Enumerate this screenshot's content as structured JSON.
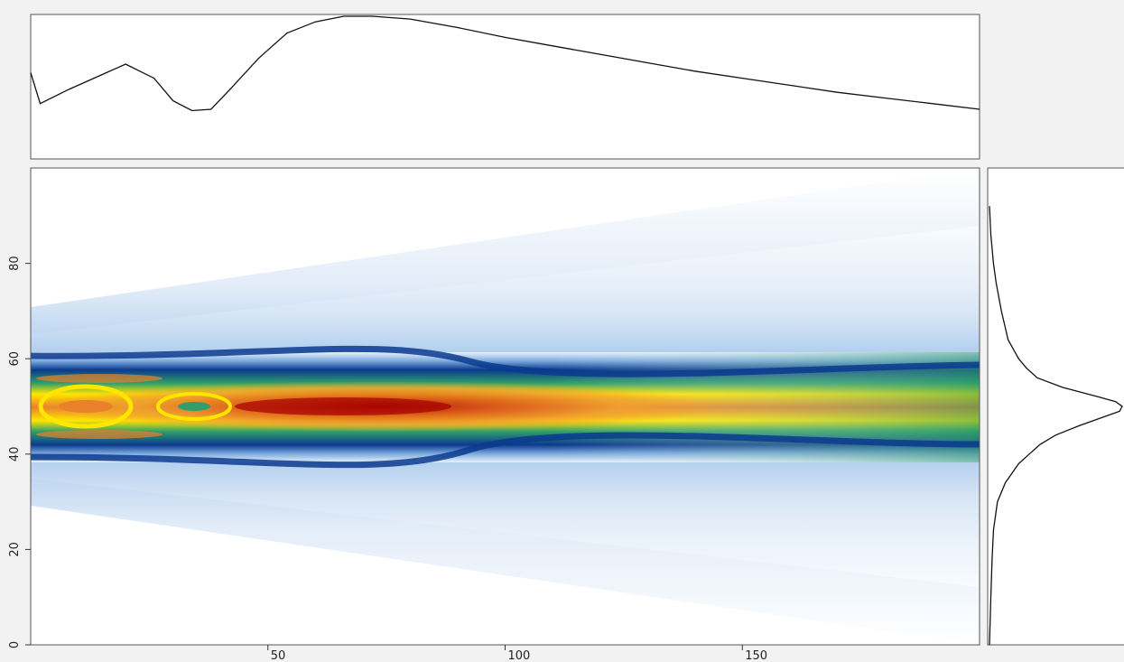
{
  "chart_data": {
    "type": "heatmap",
    "title": "",
    "xlabel": "",
    "ylabel": "",
    "xlim": [
      0,
      200
    ],
    "ylim": [
      0,
      100
    ],
    "x_ticks": [
      50,
      100,
      150
    ],
    "y_ticks": [
      0,
      20,
      40,
      60,
      80
    ],
    "heatmap": {
      "colorscale": [
        "#ffffff",
        "#c9dff5",
        "#6fa8dc",
        "#0b3a8e",
        "#2e8b57",
        "#ffff00",
        "#f39c12",
        "#a50000"
      ],
      "description_values": {
        "core_band_y": [
          40,
          60
        ],
        "peak_x": 75,
        "peak_y": 50
      }
    },
    "top_profile": {
      "x": [
        0,
        2,
        8,
        16,
        20,
        26,
        30,
        34,
        38,
        42,
        48,
        54,
        60,
        66,
        72,
        80,
        90,
        100,
        110,
        120,
        130,
        140,
        150,
        160,
        170,
        180,
        190,
        200
      ],
      "y": [
        0.6,
        0.38,
        0.48,
        0.6,
        0.66,
        0.56,
        0.4,
        0.33,
        0.34,
        0.48,
        0.7,
        0.88,
        0.96,
        1.0,
        1.0,
        0.98,
        0.92,
        0.85,
        0.79,
        0.73,
        0.67,
        0.61,
        0.56,
        0.51,
        0.46,
        0.42,
        0.38,
        0.34
      ]
    },
    "right_profile": {
      "y": [
        0,
        10,
        18,
        24,
        30,
        34,
        38,
        40,
        42,
        44,
        46,
        48,
        49,
        50,
        51,
        52,
        54,
        56,
        58,
        60,
        64,
        70,
        76,
        80,
        86,
        92
      ],
      "x": [
        0.0,
        0.01,
        0.02,
        0.03,
        0.06,
        0.12,
        0.22,
        0.3,
        0.38,
        0.5,
        0.68,
        0.88,
        0.98,
        1.0,
        0.95,
        0.82,
        0.55,
        0.36,
        0.28,
        0.22,
        0.14,
        0.09,
        0.05,
        0.03,
        0.01,
        0.0
      ]
    }
  }
}
